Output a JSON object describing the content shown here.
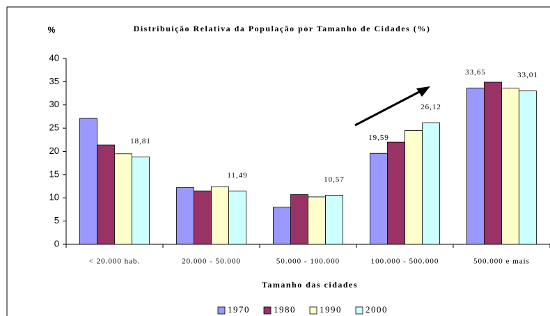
{
  "chart_data": {
    "type": "bar",
    "title": "Distribuição Relativa da População por Tamanho de Cidades (%)",
    "y_label": "%",
    "x_label": "Tamanho das cidades",
    "categories": [
      "< 20.000 hab.",
      "20.000 - 50.000",
      "50.000 - 100.000",
      "100.000 - 500.000",
      "500.000 e mais"
    ],
    "series": [
      {
        "name": "1970",
        "color": "#9999ff",
        "values": [
          27.1,
          12.2,
          8.0,
          19.59,
          33.65
        ],
        "value_labels": [
          null,
          null,
          null,
          "19,59",
          "33,65"
        ]
      },
      {
        "name": "1980",
        "color": "#993366",
        "values": [
          21.4,
          11.5,
          10.7,
          22.0,
          34.9
        ]
      },
      {
        "name": "1990",
        "color": "#ffffcc",
        "values": [
          19.5,
          12.4,
          10.2,
          24.5,
          33.6
        ]
      },
      {
        "name": "2000",
        "color": "#ccffff",
        "values": [
          18.81,
          11.49,
          10.57,
          26.12,
          33.01
        ],
        "value_labels": [
          "18,81",
          "11,49",
          "10,57",
          "26,12",
          "33,01"
        ]
      }
    ],
    "ylim": [
      0,
      40
    ],
    "yticks": [
      0,
      5,
      10,
      15,
      20,
      25,
      30,
      35,
      40
    ],
    "grid": false,
    "legend": "bottom"
  }
}
